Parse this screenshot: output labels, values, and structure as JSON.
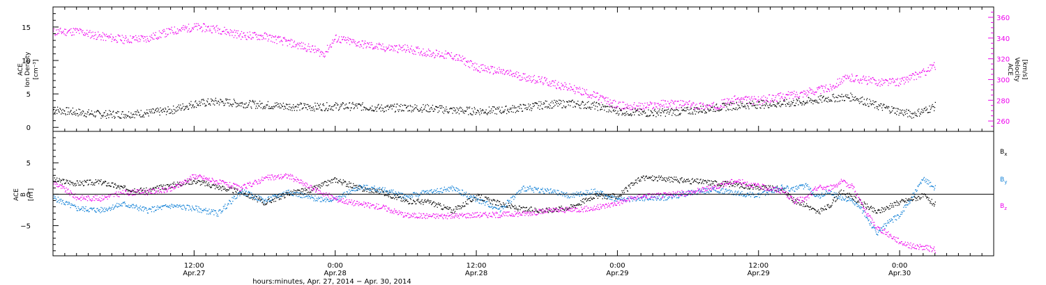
{
  "chart_data": [
    {
      "type": "scatter",
      "panel": "top",
      "ylabel_left": [
        "ACE",
        "Ion Density",
        "[cm⁻³]"
      ],
      "ylabel_right": [
        "ACE",
        "Velocity",
        "[km/s]"
      ],
      "y_left_ticks": [
        "0",
        "5",
        "10",
        "15"
      ],
      "y_left_range": [
        -0.6,
        18
      ],
      "y_right_ticks": [
        "260",
        "280",
        "300",
        "320",
        "340",
        "360"
      ],
      "y_right_range": [
        250,
        370
      ],
      "colors": {
        "density": "#000000",
        "velocity": "#ee00ee"
      },
      "x_range_hours": [
        0,
        80
      ],
      "series": [
        {
          "name": "",
          "axis": "left",
          "color": "density",
          "points": [
            [
              0,
              2.7
            ],
            [
              2,
              2.3
            ],
            [
              4,
              2.0
            ],
            [
              6,
              2.0
            ],
            [
              8,
              2.2
            ],
            [
              10,
              2.6
            ],
            [
              12,
              3.6
            ],
            [
              14,
              3.9
            ],
            [
              16,
              3.6
            ],
            [
              18,
              3.4
            ],
            [
              20,
              3.2
            ],
            [
              22,
              3.1
            ],
            [
              24,
              3.2
            ],
            [
              26,
              3.2
            ],
            [
              28,
              2.9
            ],
            [
              30,
              3.0
            ],
            [
              32,
              2.9
            ],
            [
              34,
              2.6
            ],
            [
              36,
              2.5
            ],
            [
              38,
              2.6
            ],
            [
              40,
              3.0
            ],
            [
              42,
              3.5
            ],
            [
              44,
              3.6
            ],
            [
              46,
              3.3
            ],
            [
              48,
              2.5
            ],
            [
              50,
              2.2
            ],
            [
              52,
              2.3
            ],
            [
              54,
              2.5
            ],
            [
              56,
              2.9
            ],
            [
              58,
              3.3
            ],
            [
              60,
              3.5
            ],
            [
              62,
              3.6
            ],
            [
              64,
              3.9
            ],
            [
              66,
              4.4
            ],
            [
              68,
              4.6
            ],
            [
              70,
              3.3
            ],
            [
              72,
              2.4
            ],
            [
              73,
              2.0
            ],
            [
              74,
              2.5
            ],
            [
              75,
              3.2
            ]
          ]
        },
        {
          "name": "",
          "axis": "right",
          "color": "velocity",
          "points": [
            [
              0,
              346
            ],
            [
              2,
              347
            ],
            [
              4,
              342
            ],
            [
              6,
              339
            ],
            [
              8,
              340
            ],
            [
              10,
              347
            ],
            [
              12,
              351
            ],
            [
              14,
              349
            ],
            [
              16,
              343
            ],
            [
              18,
              342
            ],
            [
              20,
              336
            ],
            [
              22,
              330
            ],
            [
              23,
              325
            ],
            [
              24,
              340
            ],
            [
              26,
              335
            ],
            [
              28,
              331
            ],
            [
              30,
              330
            ],
            [
              32,
              326
            ],
            [
              34,
              323
            ],
            [
              35,
              318
            ],
            [
              36,
              312
            ],
            [
              38,
              308
            ],
            [
              40,
              303
            ],
            [
              42,
              298
            ],
            [
              44,
              292
            ],
            [
              46,
              285
            ],
            [
              48,
              275
            ],
            [
              50,
              274
            ],
            [
              52,
              277
            ],
            [
              54,
              276
            ],
            [
              56,
              274
            ],
            [
              58,
              281
            ],
            [
              60,
              280
            ],
            [
              62,
              284
            ],
            [
              64,
              288
            ],
            [
              66,
              292
            ],
            [
              67,
              300
            ],
            [
              68,
              302
            ],
            [
              70,
              298
            ],
            [
              72,
              298
            ],
            [
              74,
              307
            ],
            [
              75,
              314
            ]
          ]
        }
      ]
    },
    {
      "type": "scatter",
      "panel": "bottom",
      "ylabel_left": [
        "ACE",
        "B",
        "[nT]"
      ],
      "y_left_ticks": [
        "-5",
        "0",
        "5"
      ],
      "y_left_range": [
        -9.8,
        10
      ],
      "zero_line": true,
      "colors": {
        "Bx": "#000000",
        "By": "#0c7ed6",
        "Bz": "#ee00ee"
      },
      "legend_position": "right",
      "x_range_hours": [
        0,
        80
      ],
      "series": [
        {
          "name": "Bx",
          "color": "Bx",
          "points": [
            [
              0,
              2.3
            ],
            [
              2,
              1.8
            ],
            [
              4,
              2.0
            ],
            [
              6,
              1.0
            ],
            [
              8,
              0.6
            ],
            [
              10,
              1.5
            ],
            [
              12,
              2.2
            ],
            [
              14,
              1.2
            ],
            [
              16,
              0.4
            ],
            [
              18,
              -1.3
            ],
            [
              20,
              0.2
            ],
            [
              22,
              0.8
            ],
            [
              24,
              2.4
            ],
            [
              26,
              1.0
            ],
            [
              28,
              0.4
            ],
            [
              30,
              -1.0
            ],
            [
              32,
              -1.2
            ],
            [
              34,
              -2.6
            ],
            [
              36,
              -0.3
            ],
            [
              38,
              -1.5
            ],
            [
              40,
              -2.4
            ],
            [
              42,
              -2.5
            ],
            [
              44,
              -2.0
            ],
            [
              46,
              -0.2
            ],
            [
              48,
              -0.3
            ],
            [
              50,
              2.7
            ],
            [
              52,
              2.5
            ],
            [
              54,
              2.2
            ],
            [
              56,
              1.9
            ],
            [
              58,
              1.6
            ],
            [
              60,
              1.1
            ],
            [
              62,
              0.9
            ],
            [
              63,
              -1.0
            ],
            [
              64,
              -1.6
            ],
            [
              65,
              -2.9
            ],
            [
              66,
              -1.8
            ],
            [
              67,
              0.4
            ],
            [
              68,
              -0.5
            ],
            [
              70,
              -2.8
            ],
            [
              72,
              -1.2
            ],
            [
              74,
              -0.2
            ],
            [
              75,
              -1.6
            ]
          ]
        },
        {
          "name": "By",
          "color": "By",
          "points": [
            [
              0,
              -0.5
            ],
            [
              2,
              -2.2
            ],
            [
              4,
              -2.5
            ],
            [
              6,
              -1.5
            ],
            [
              8,
              -2.5
            ],
            [
              10,
              -1.8
            ],
            [
              12,
              -2.2
            ],
            [
              14,
              -3.0
            ],
            [
              16,
              0.5
            ],
            [
              18,
              -1.0
            ],
            [
              20,
              0.5
            ],
            [
              22,
              -0.6
            ],
            [
              24,
              -0.8
            ],
            [
              26,
              1.2
            ],
            [
              28,
              0.8
            ],
            [
              30,
              -0.3
            ],
            [
              32,
              0.4
            ],
            [
              34,
              1.0
            ],
            [
              36,
              -0.8
            ],
            [
              38,
              -2.3
            ],
            [
              40,
              1.0
            ],
            [
              42,
              0.6
            ],
            [
              44,
              -0.2
            ],
            [
              46,
              0.5
            ],
            [
              48,
              -0.8
            ],
            [
              50,
              -0.6
            ],
            [
              52,
              -0.5
            ],
            [
              54,
              0.2
            ],
            [
              56,
              0.8
            ],
            [
              58,
              0.3
            ],
            [
              60,
              -0.2
            ],
            [
              61,
              0.6
            ],
            [
              62,
              1.2
            ],
            [
              63,
              0.8
            ],
            [
              64,
              1.5
            ],
            [
              65,
              -0.3
            ],
            [
              66,
              0.5
            ],
            [
              67,
              -0.5
            ],
            [
              68,
              -1.0
            ],
            [
              69,
              -3.0
            ],
            [
              70,
              -6.2
            ],
            [
              71,
              -4.5
            ],
            [
              72,
              -3.2
            ],
            [
              73,
              -0.5
            ],
            [
              74,
              2.5
            ],
            [
              75,
              1.0
            ]
          ]
        },
        {
          "name": "Bz",
          "color": "Bz",
          "points": [
            [
              0,
              2.0
            ],
            [
              2,
              -0.5
            ],
            [
              4,
              -0.6
            ],
            [
              6,
              0.3
            ],
            [
              8,
              0.4
            ],
            [
              10,
              0.8
            ],
            [
              12,
              3.0
            ],
            [
              14,
              2.0
            ],
            [
              16,
              1.0
            ],
            [
              18,
              2.6
            ],
            [
              20,
              3.0
            ],
            [
              22,
              1.0
            ],
            [
              24,
              -0.7
            ],
            [
              26,
              -1.5
            ],
            [
              28,
              -2.0
            ],
            [
              30,
              -3.3
            ],
            [
              32,
              -3.4
            ],
            [
              34,
              -3.4
            ],
            [
              36,
              -3.2
            ],
            [
              38,
              -3.2
            ],
            [
              40,
              -3.0
            ],
            [
              42,
              -2.6
            ],
            [
              44,
              -2.4
            ],
            [
              46,
              -2.2
            ],
            [
              48,
              -1.3
            ],
            [
              50,
              -0.2
            ],
            [
              52,
              -0.1
            ],
            [
              54,
              0.3
            ],
            [
              56,
              1.1
            ],
            [
              58,
              2.2
            ],
            [
              60,
              1.3
            ],
            [
              62,
              0.6
            ],
            [
              63,
              -1.0
            ],
            [
              64,
              -0.7
            ],
            [
              65,
              1.2
            ],
            [
              66,
              1.0
            ],
            [
              67,
              2.0
            ],
            [
              68,
              1.3
            ],
            [
              69,
              -2.5
            ],
            [
              70,
              -5.2
            ],
            [
              71,
              -6.3
            ],
            [
              72,
              -7.5
            ],
            [
              73,
              -8.2
            ],
            [
              74,
              -8.4
            ],
            [
              75,
              -8.8
            ]
          ]
        }
      ]
    }
  ],
  "x_axis": {
    "ticks": [
      {
        "hours": 12,
        "time": "12:00",
        "date": "Apr.27"
      },
      {
        "hours": 24,
        "time": "0:00",
        "date": "Apr.28"
      },
      {
        "hours": 36,
        "time": "12:00",
        "date": "Apr.28"
      },
      {
        "hours": 48,
        "time": "0:00",
        "date": "Apr.29"
      },
      {
        "hours": 60,
        "time": "12:00",
        "date": "Apr.29"
      },
      {
        "hours": 72,
        "time": "0:00",
        "date": "Apr.30"
      }
    ],
    "title": "hours:minutes, Apr. 27, 2014 − Apr. 30, 2014"
  }
}
